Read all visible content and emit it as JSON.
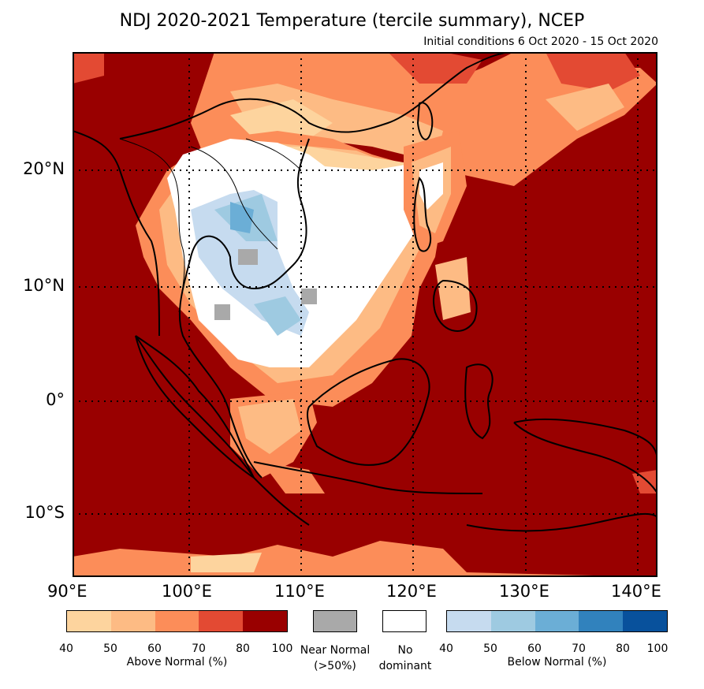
{
  "title": "NDJ 2020-2021 Temperature (tercile summary), NCEP",
  "subtitle": "Initial conditions 6 Oct 2020 - 15 Oct 2020",
  "map": {
    "lat_labels": [
      "20°N",
      "10°N",
      "0°",
      "10°S"
    ],
    "lon_labels": [
      "90°E",
      "100°E",
      "110°E",
      "120°E",
      "130°E",
      "140°E"
    ],
    "background_category": "above_80_100"
  },
  "legend": {
    "above": {
      "title": "Above Normal (%)",
      "ticks": [
        "40",
        "50",
        "60",
        "70",
        "80",
        "100"
      ],
      "colors": [
        "#fdd49e",
        "#fdbb84",
        "#fc8d59",
        "#e34a33",
        "#990000"
      ]
    },
    "near": {
      "label_line1": "Near Normal",
      "label_line2": "(>50%)",
      "color": "#a9a9a9"
    },
    "nodom": {
      "label_line1": "No",
      "label_line2": "dominant",
      "color": "#ffffff"
    },
    "below": {
      "title": "Below Normal (%)",
      "ticks": [
        "40",
        "50",
        "60",
        "70",
        "80",
        "100"
      ],
      "colors": [
        "#c6dbef",
        "#9ecae1",
        "#6baed6",
        "#3182bd",
        "#08519c"
      ]
    }
  },
  "colors": {
    "above_80_100": "#990000",
    "above_70_80": "#e34a33",
    "above_60_70": "#fc8d59",
    "above_50_60": "#fdbb84",
    "above_40_50": "#fdd49e",
    "nodom": "#ffffff",
    "near": "#a9a9a9",
    "below_40_50": "#c6dbef",
    "below_50_60": "#9ecae1",
    "below_60_70": "#6baed6"
  }
}
